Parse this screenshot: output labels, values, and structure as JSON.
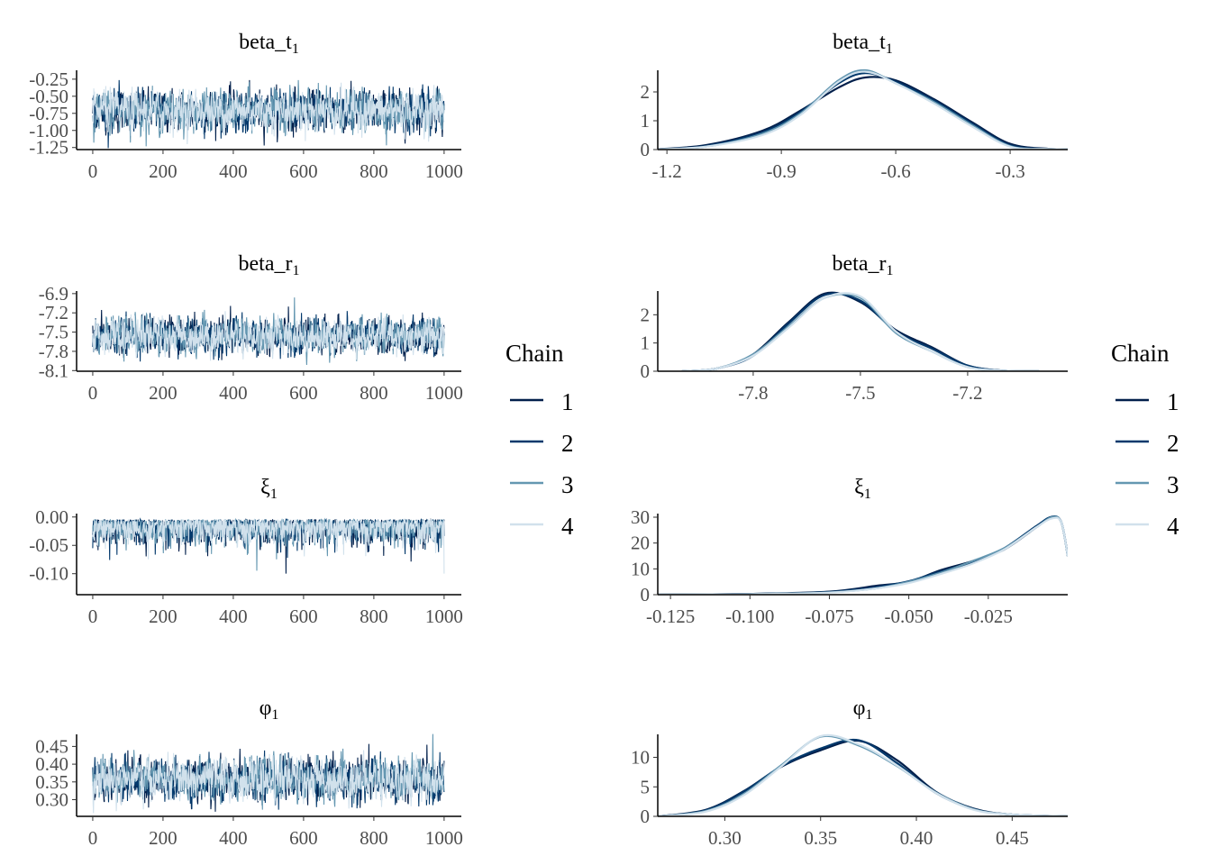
{
  "chart_data": [
    {
      "type": "line",
      "panel": "trace",
      "title": "beta_t",
      "subscript": "1",
      "xlim": [
        -46,
        1049
      ],
      "ylim": [
        -1.28,
        -0.12
      ],
      "xticks": [
        0,
        200,
        400,
        600,
        800,
        1000
      ],
      "yticks": [
        -0.25,
        -0.5,
        -0.75,
        -1.0,
        -1.25
      ],
      "ytick_labels": [
        "-0.25",
        "-0.50",
        "-0.75",
        "-1.00",
        "-1.25"
      ],
      "iterations": 1000,
      "chain_mean": -0.71,
      "chain_sd": 0.16
    },
    {
      "type": "line",
      "panel": "density",
      "title": "beta_t",
      "subscript": "1",
      "xlim": [
        -1.224,
        -0.149
      ],
      "ylim": [
        0,
        2.75
      ],
      "xticks": [
        -1.2,
        -0.9,
        -0.6,
        -0.3
      ],
      "xtick_labels": [
        "-1.2",
        "-0.9",
        "-0.6",
        "-0.3"
      ],
      "yticks": [
        0,
        1,
        2
      ],
      "x": [
        -1.25,
        -1.1,
        -0.95,
        -0.85,
        -0.75,
        -0.68,
        -0.6,
        -0.5,
        -0.4,
        -0.3,
        -0.2,
        -0.1
      ],
      "series": [
        {
          "name": "1",
          "values": [
            0,
            0.15,
            0.65,
            1.35,
            2.15,
            2.5,
            2.4,
            1.75,
            0.95,
            0.2,
            0.03,
            0
          ]
        },
        {
          "name": "2",
          "values": [
            0,
            0.12,
            0.6,
            1.3,
            2.3,
            2.65,
            2.35,
            1.7,
            0.9,
            0.15,
            0.02,
            0
          ]
        },
        {
          "name": "3",
          "values": [
            0,
            0.1,
            0.55,
            1.25,
            2.4,
            2.75,
            2.3,
            1.65,
            0.85,
            0.12,
            0.02,
            0
          ]
        },
        {
          "name": "4",
          "values": [
            0,
            0.1,
            0.5,
            1.2,
            2.35,
            2.7,
            2.3,
            1.6,
            0.8,
            0.1,
            0.02,
            0
          ]
        }
      ]
    },
    {
      "type": "line",
      "panel": "trace",
      "title": "beta_r",
      "subscript": "1",
      "xlim": [
        -46,
        1049
      ],
      "ylim": [
        -8.11,
        -6.86
      ],
      "xticks": [
        0,
        200,
        400,
        600,
        800,
        1000
      ],
      "yticks": [
        -6.9,
        -7.2,
        -7.5,
        -7.8,
        -8.1
      ],
      "ytick_labels": [
        "-6.9",
        "-7.2",
        "-7.5",
        "-7.8",
        "-8.1"
      ],
      "iterations": 1000,
      "chain_mean": -7.56,
      "chain_sd": 0.15
    },
    {
      "type": "line",
      "panel": "density",
      "title": "beta_r",
      "subscript": "1",
      "xlim": [
        -8.067,
        -6.92
      ],
      "ylim": [
        0,
        2.84
      ],
      "xticks": [
        -7.8,
        -7.5,
        -7.2
      ],
      "xtick_labels": [
        "-7.8",
        "-7.5",
        "-7.2"
      ],
      "yticks": [
        0,
        1,
        2
      ],
      "x": [
        -8.0,
        -7.9,
        -7.8,
        -7.7,
        -7.6,
        -7.5,
        -7.4,
        -7.3,
        -7.2,
        -7.1,
        -7.0
      ],
      "series": [
        {
          "name": "1",
          "values": [
            0,
            0.1,
            0.6,
            1.75,
            2.75,
            2.45,
            1.45,
            0.85,
            0.2,
            0.02,
            0
          ]
        },
        {
          "name": "2",
          "values": [
            0,
            0.1,
            0.55,
            1.7,
            2.7,
            2.5,
            1.4,
            0.8,
            0.2,
            0.02,
            0
          ]
        },
        {
          "name": "3",
          "values": [
            0,
            0.1,
            0.6,
            1.6,
            2.6,
            2.6,
            1.35,
            0.7,
            0.15,
            0.02,
            0
          ]
        },
        {
          "name": "4",
          "values": [
            0,
            0.1,
            0.55,
            1.55,
            2.6,
            2.65,
            1.4,
            0.7,
            0.15,
            0.02,
            0
          ]
        }
      ]
    },
    {
      "type": "line",
      "panel": "trace",
      "title": "ξ",
      "subscript": "1",
      "xlim": [
        -46,
        1049
      ],
      "ylim": [
        -0.137,
        0.006
      ],
      "xticks": [
        0,
        200,
        400,
        600,
        800,
        1000
      ],
      "yticks": [
        0,
        -0.05,
        -0.1
      ],
      "ytick_labels": [
        "0.00",
        "-0.05",
        "-0.10"
      ],
      "iterations": 1000,
      "chain_mean": -0.02,
      "chain_sd": 0.02
    },
    {
      "type": "line",
      "panel": "density",
      "title": "ξ",
      "subscript": "1",
      "xlim": [
        -0.129,
        0.0
      ],
      "ylim": [
        0,
        31.4
      ],
      "xticks": [
        -0.125,
        -0.1,
        -0.075,
        -0.05,
        -0.025
      ],
      "xtick_labels": [
        "-0.125",
        "-0.100",
        "-0.075",
        "-0.050",
        "-0.025"
      ],
      "yticks": [
        0,
        10,
        20,
        30
      ],
      "x": [
        -0.129,
        -0.1,
        -0.075,
        -0.06,
        -0.05,
        -0.04,
        -0.03,
        -0.02,
        -0.01,
        -0.005,
        -0.002,
        0
      ],
      "series": [
        {
          "name": "1",
          "values": [
            0,
            0.3,
            1.2,
            3.5,
            5,
            9.5,
            13,
            17.5,
            26,
            30,
            28,
            15
          ]
        },
        {
          "name": "2",
          "values": [
            0,
            0.3,
            1,
            3,
            5.2,
            9,
            12.5,
            18,
            26.5,
            30.2,
            28,
            15
          ]
        },
        {
          "name": "3",
          "values": [
            0,
            0.2,
            0.9,
            2.5,
            5,
            8.5,
            13,
            18,
            26,
            30,
            28,
            15
          ]
        },
        {
          "name": "4",
          "values": [
            0,
            0.2,
            0.8,
            2.5,
            4.5,
            8,
            12,
            17.5,
            26,
            29.5,
            28,
            15
          ]
        }
      ]
    },
    {
      "type": "line",
      "panel": "trace",
      "title": "φ",
      "subscript": "1",
      "xlim": [
        -46,
        1049
      ],
      "ylim": [
        0.253,
        0.484
      ],
      "xticks": [
        0,
        200,
        400,
        600,
        800,
        1000
      ],
      "yticks": [
        0.45,
        0.4,
        0.35,
        0.3
      ],
      "ytick_labels": [
        "0.45",
        "0.40",
        "0.35",
        "0.30"
      ],
      "iterations": 1000,
      "chain_mean": 0.357,
      "chain_sd": 0.032
    },
    {
      "type": "line",
      "panel": "density",
      "title": "φ",
      "subscript": "1",
      "xlim": [
        0.265,
        0.479
      ],
      "ylim": [
        0,
        13.9
      ],
      "xticks": [
        0.3,
        0.35,
        0.4,
        0.45
      ],
      "xtick_labels": [
        "0.30",
        "0.35",
        "0.40",
        "0.45"
      ],
      "yticks": [
        0,
        5,
        10
      ],
      "x": [
        0.265,
        0.29,
        0.31,
        0.33,
        0.35,
        0.37,
        0.39,
        0.41,
        0.43,
        0.45,
        0.479
      ],
      "series": [
        {
          "name": "1",
          "values": [
            0,
            1.1,
            4.3,
            8.5,
            11.2,
            12.8,
            9.5,
            4.2,
            1.3,
            0.3,
            0
          ]
        },
        {
          "name": "2",
          "values": [
            0,
            1,
            4.2,
            8.6,
            11.5,
            12.9,
            9,
            4,
            1.2,
            0.3,
            0
          ]
        },
        {
          "name": "3",
          "values": [
            0,
            0.9,
            3.8,
            8.8,
            13.5,
            12,
            8.5,
            4.1,
            1.2,
            0.3,
            0
          ]
        },
        {
          "name": "4",
          "values": [
            0,
            0.8,
            3.6,
            8.6,
            13.6,
            12.2,
            8.6,
            4.0,
            1.1,
            0.3,
            0
          ]
        }
      ]
    }
  ],
  "legend": {
    "title": "Chain",
    "items": [
      "1",
      "2",
      "3",
      "4"
    ]
  },
  "colors": {
    "1": "#011f4b",
    "2": "#03396c",
    "3": "#6497b1",
    "4": "#d1e1ec"
  }
}
